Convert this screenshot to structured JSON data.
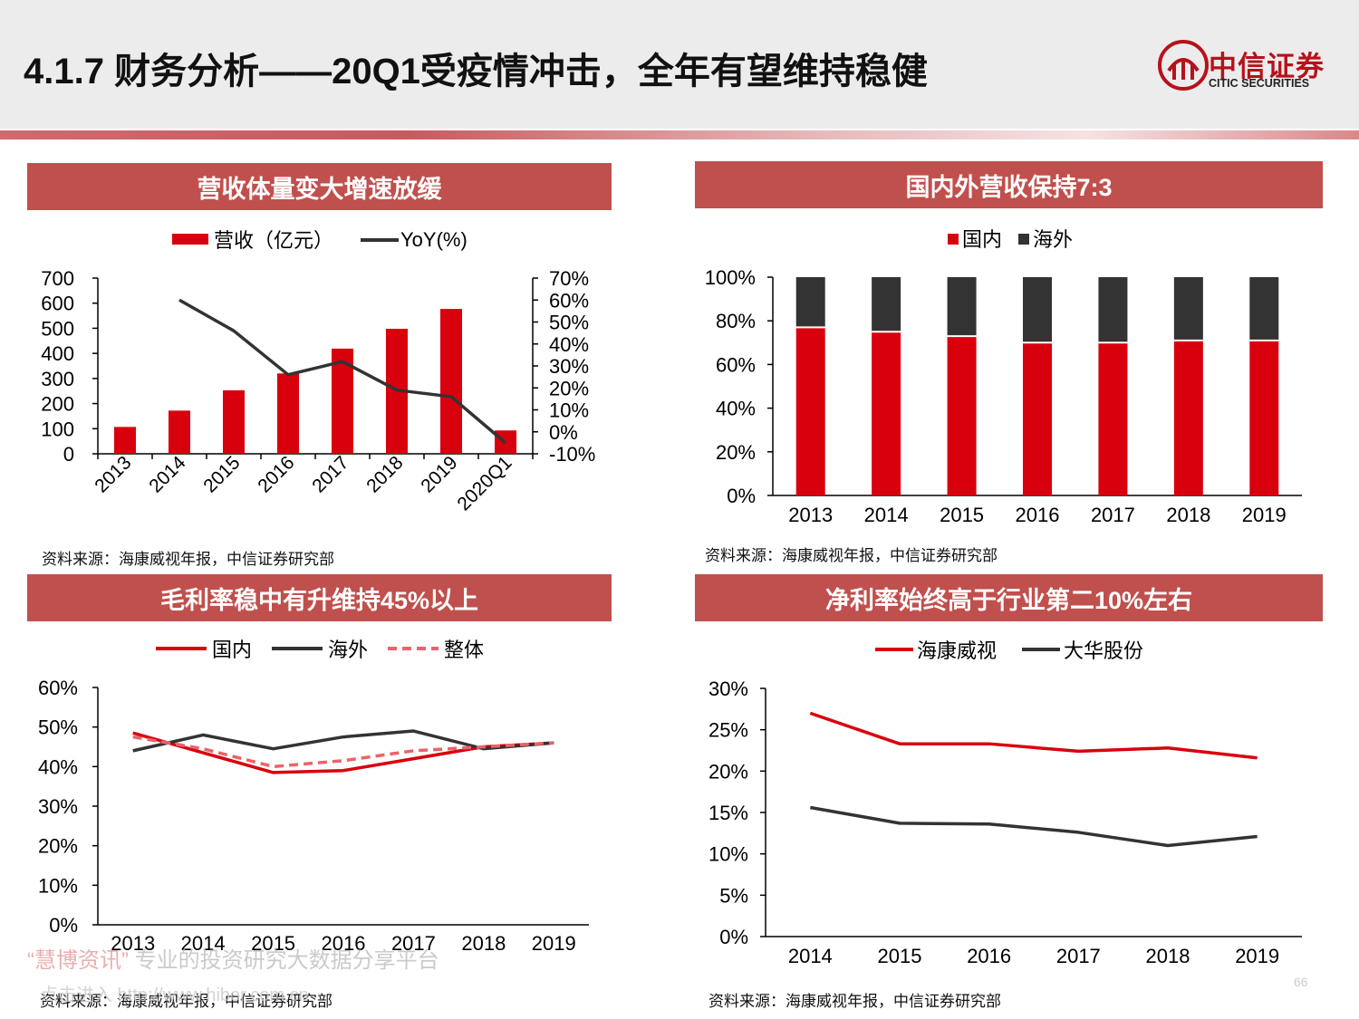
{
  "header": {
    "title": "4.1.7 财务分析——20Q1受疫情冲击，全年有望维持稳健",
    "logo_cn": "中信证券",
    "logo_en": "CITIC SECURITIES"
  },
  "panels": {
    "p1": {
      "title": "营收体量变大增速放缓",
      "source": "资料来源：海康威视年报，中信证券研究部"
    },
    "p2": {
      "title": "国内外营收保持7:3",
      "source": "资料来源：海康威视年报，中信证券研究部"
    },
    "p3": {
      "title": "毛利率稳中有升维持45%以上",
      "source": "资料来源：海康威视年报，中信证券研究部"
    },
    "p4": {
      "title": "净利率始终高于行业第二10%左右",
      "source": "资料来源：海康威视年报，中信证券研究部"
    }
  },
  "watermark": {
    "brand": "“慧博资讯”",
    "slogan": " 专业的投资研究大数据分享平台",
    "url": "点击进入 http://www.hibor.com.cn"
  },
  "page_number": "66",
  "colors": {
    "red": "#d9000d",
    "dark": "#333333",
    "pink": "#e8646a",
    "band": "#c0504d"
  },
  "chart_data": [
    {
      "id": "revenue",
      "type": "bar",
      "categories": [
        "2013",
        "2014",
        "2015",
        "2016",
        "2017",
        "2018",
        "2019",
        "2020Q1"
      ],
      "series": [
        {
          "name": "营收（亿元）",
          "kind": "bar",
          "axis": "left",
          "values": [
            107,
            172,
            253,
            320,
            419,
            498,
            577,
            93
          ]
        },
        {
          "name": "YoY(%)",
          "kind": "line",
          "axis": "right",
          "values": [
            null,
            60,
            46,
            26,
            32,
            19,
            16,
            -5
          ]
        }
      ],
      "yticks_left": [
        "700",
        "600",
        "500",
        "400",
        "300",
        "200",
        "100",
        "0"
      ],
      "yticks_right": [
        "70%",
        "60%",
        "50%",
        "40%",
        "30%",
        "20%",
        "10%",
        "0%",
        "-10%"
      ],
      "ylim_left": [
        0,
        700
      ],
      "ylim_right": [
        -10,
        70
      ],
      "legend": "top-center"
    },
    {
      "id": "domestic_overseas",
      "type": "bar",
      "stacked": true,
      "categories": [
        "2013",
        "2014",
        "2015",
        "2016",
        "2017",
        "2018",
        "2019"
      ],
      "series": [
        {
          "name": "国内",
          "values": [
            77,
            75,
            73,
            70,
            70,
            71,
            71
          ]
        },
        {
          "name": "海外",
          "values": [
            23,
            25,
            27,
            30,
            30,
            29,
            29
          ]
        }
      ],
      "yticks": [
        "100%",
        "80%",
        "60%",
        "40%",
        "20%",
        "0%"
      ],
      "ylim": [
        0,
        100
      ],
      "legend": "top-center"
    },
    {
      "id": "gross_margin",
      "type": "line",
      "categories": [
        "2013",
        "2014",
        "2015",
        "2016",
        "2017",
        "2018",
        "2019"
      ],
      "series": [
        {
          "name": "国内",
          "values": [
            48.5,
            43.5,
            38.5,
            39.0,
            42.0,
            45.0,
            46.0
          ]
        },
        {
          "name": "海外",
          "values": [
            44.0,
            48.0,
            44.5,
            47.5,
            49.0,
            44.5,
            46.0
          ]
        },
        {
          "name": "整体",
          "values": [
            47.5,
            44.5,
            40.0,
            41.5,
            44.0,
            45.0,
            46.0
          ]
        }
      ],
      "yticks": [
        "60%",
        "50%",
        "40%",
        "30%",
        "20%",
        "10%",
        "0%"
      ],
      "ylim": [
        0,
        60
      ],
      "legend": "top-center"
    },
    {
      "id": "net_margin",
      "type": "line",
      "categories": [
        "2014",
        "2015",
        "2016",
        "2017",
        "2018",
        "2019"
      ],
      "series": [
        {
          "name": "海康威视",
          "values": [
            27.0,
            23.3,
            23.3,
            22.4,
            22.8,
            21.6
          ]
        },
        {
          "name": "大华股份",
          "values": [
            15.6,
            13.7,
            13.6,
            12.6,
            11.0,
            12.1
          ]
        }
      ],
      "yticks": [
        "30%",
        "25%",
        "20%",
        "15%",
        "10%",
        "5%",
        "0%"
      ],
      "ylim": [
        0,
        30
      ],
      "legend": "top-center"
    }
  ]
}
